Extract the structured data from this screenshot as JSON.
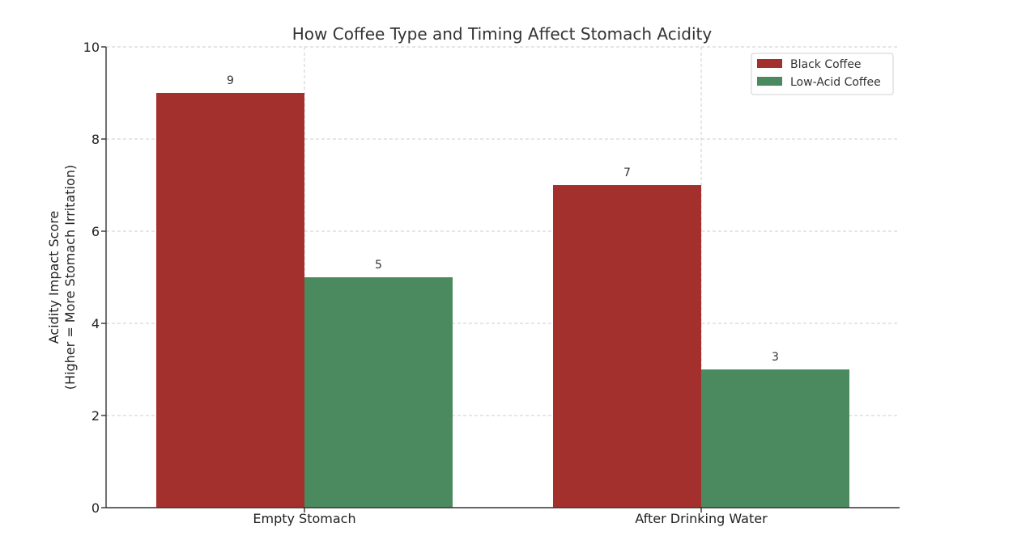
{
  "chart_data": {
    "type": "bar",
    "title": "How Coffee Type and Timing Affect Stomach Acidity",
    "xlabel": "",
    "ylabel_lines": [
      "Acidity Impact Score",
      "(Higher = More Stomach Irritation)"
    ],
    "categories": [
      "Empty Stomach",
      "After Drinking Water"
    ],
    "series": [
      {
        "name": "Black Coffee",
        "values": [
          9,
          7
        ],
        "color": "#a3302c"
      },
      {
        "name": "Low-Acid Coffee",
        "values": [
          5,
          3
        ],
        "color": "#4b8a5e"
      }
    ],
    "ylim": [
      0,
      10
    ],
    "yticks": [
      0,
      2,
      4,
      6,
      8,
      10
    ],
    "grid": true,
    "legend_position": "top-right"
  }
}
